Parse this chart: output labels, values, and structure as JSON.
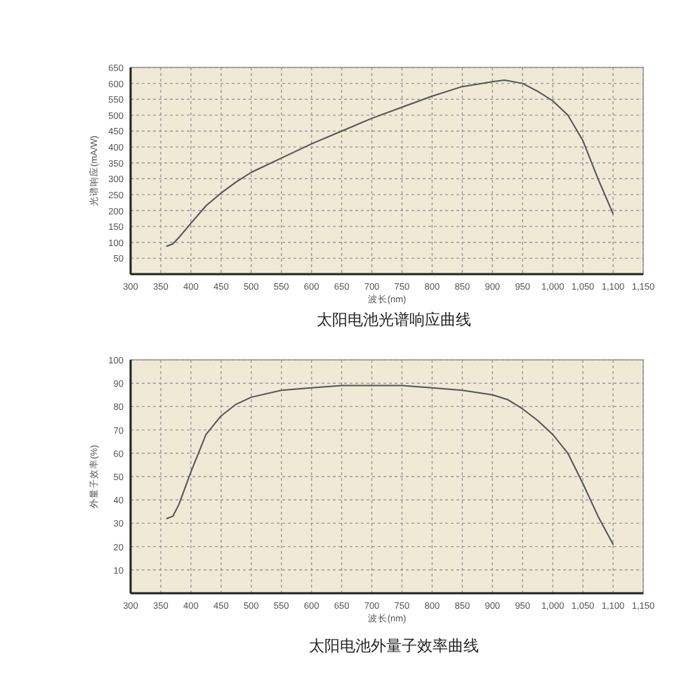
{
  "chart_data": [
    {
      "type": "line",
      "title": "太阳电池光谱响应曲线",
      "xlabel": "波长(nm)",
      "ylabel": "光谱响应(mA/W)",
      "grid": true,
      "marker": "none",
      "line_style": "solid",
      "x": [
        360,
        370,
        380,
        400,
        425,
        450,
        475,
        500,
        550,
        600,
        650,
        700,
        750,
        800,
        850,
        900,
        920,
        950,
        975,
        1000,
        1025,
        1050,
        1075,
        1100
      ],
      "series": [
        {
          "color": "#555555",
          "values": [
            88,
            95,
            115,
            160,
            215,
            255,
            290,
            320,
            365,
            410,
            450,
            490,
            525,
            560,
            590,
            605,
            610,
            600,
            575,
            545,
            500,
            420,
            300,
            190
          ]
        }
      ],
      "xlim": [
        300,
        1150
      ],
      "xticks": [
        300,
        350,
        400,
        450,
        500,
        550,
        600,
        650,
        700,
        750,
        800,
        850,
        900,
        950,
        {
          "value": 1000,
          "label": "1,000"
        },
        {
          "value": 1050,
          "label": "1,050"
        },
        {
          "value": 1100,
          "label": "1,100"
        },
        {
          "value": 1150,
          "label": "1,150"
        }
      ],
      "ylim": [
        0,
        650
      ],
      "yticks": [
        50,
        100,
        150,
        200,
        250,
        300,
        350,
        400,
        450,
        500,
        550,
        600,
        650
      ]
    },
    {
      "type": "line",
      "title": "太阳电池外量子效率曲线",
      "xlabel": "波长(nm)",
      "ylabel": "外量子效率(%)",
      "grid": true,
      "marker": "none",
      "line_style": "solid",
      "x": [
        360,
        370,
        380,
        400,
        425,
        450,
        475,
        500,
        550,
        600,
        650,
        700,
        750,
        800,
        850,
        900,
        925,
        950,
        975,
        1000,
        1025,
        1050,
        1075,
        1100
      ],
      "series": [
        {
          "color": "#555555",
          "values": [
            32,
            33,
            38,
            52,
            68,
            76,
            81,
            84,
            87,
            88,
            89,
            89,
            89,
            88,
            87,
            85,
            83,
            79,
            74,
            68,
            60,
            47,
            33,
            21
          ]
        }
      ],
      "xlim": [
        300,
        1150
      ],
      "xticks": [
        300,
        350,
        400,
        450,
        500,
        550,
        600,
        650,
        700,
        750,
        800,
        850,
        900,
        950,
        {
          "value": 1000,
          "label": "1,000"
        },
        {
          "value": 1050,
          "label": "1,050"
        },
        {
          "value": 1100,
          "label": "1,100"
        },
        {
          "value": 1150,
          "label": "1,150"
        }
      ],
      "ylim": [
        0,
        100
      ],
      "yticks": [
        10,
        20,
        30,
        40,
        50,
        60,
        70,
        80,
        90,
        100
      ]
    }
  ]
}
